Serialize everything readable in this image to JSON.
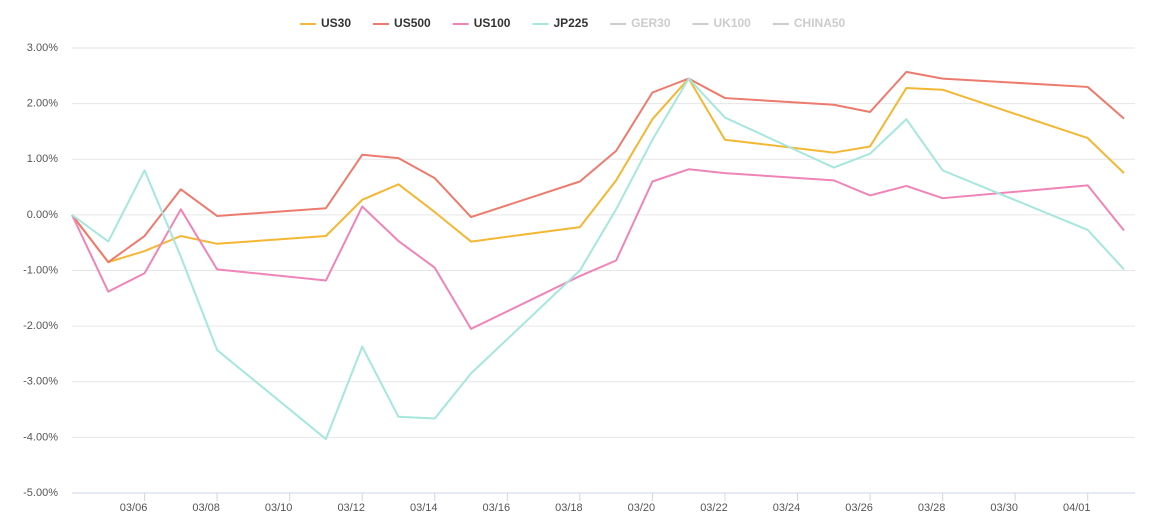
{
  "chart_data": {
    "type": "line",
    "x": [
      "03/04",
      "03/05",
      "03/06",
      "03/07",
      "03/08",
      "03/11",
      "03/12",
      "03/13",
      "03/14",
      "03/15",
      "03/18",
      "03/19",
      "03/20",
      "03/21",
      "03/22",
      "03/25",
      "03/26",
      "03/27",
      "03/28",
      "04/01",
      "04/02"
    ],
    "series": [
      {
        "name": "US30",
        "color": "#f4b733",
        "values": [
          0,
          -0.85,
          -0.65,
          -0.38,
          -0.52,
          -0.38,
          0.27,
          0.55,
          0.05,
          -0.48,
          -0.22,
          0.62,
          1.72,
          2.45,
          1.35,
          1.12,
          1.23,
          2.28,
          2.25,
          1.38,
          0.75
        ]
      },
      {
        "name": "US500",
        "color": "#ec7b6e",
        "values": [
          0,
          -0.85,
          -0.38,
          0.46,
          -0.02,
          0.12,
          1.08,
          1.02,
          0.66,
          -0.04,
          0.6,
          1.15,
          2.2,
          2.45,
          2.1,
          1.98,
          1.85,
          2.57,
          2.45,
          2.3,
          1.73
        ]
      },
      {
        "name": "US100",
        "color": "#ef84b8",
        "values": [
          0,
          -1.38,
          -1.05,
          0.1,
          -0.98,
          -1.18,
          0.15,
          -0.47,
          -0.95,
          -2.05,
          -1.1,
          -0.82,
          0.6,
          0.82,
          0.75,
          0.62,
          0.35,
          0.52,
          0.3,
          0.53,
          -0.28
        ]
      },
      {
        "name": "JP225",
        "color": "#a6e7dd",
        "values": [
          0,
          -0.48,
          0.8,
          -0.75,
          -2.43,
          -4.03,
          -2.37,
          -3.63,
          -3.66,
          -2.85,
          -1.0,
          0.1,
          1.35,
          2.45,
          1.75,
          0.85,
          1.1,
          1.72,
          0.8,
          -0.27,
          -0.98
        ]
      }
    ],
    "hidden_legend": [
      "GER30",
      "UK100",
      "CHINA50"
    ],
    "xlim": [
      "03/04",
      "04/02"
    ],
    "xticks": [
      "03/06",
      "03/08",
      "03/10",
      "03/12",
      "03/14",
      "03/16",
      "03/18",
      "03/20",
      "03/22",
      "03/24",
      "03/26",
      "03/28",
      "03/30",
      "04/01"
    ],
    "ylim": [
      -5,
      3
    ],
    "yticks": [
      {
        "value": 3,
        "label": "3.00%"
      },
      {
        "value": 2,
        "label": "2.00%"
      },
      {
        "value": 1,
        "label": "1.00%"
      },
      {
        "value": 0,
        "label": "0.00%"
      },
      {
        "value": -1,
        "label": "-1.00%"
      },
      {
        "value": -2,
        "label": "-2.00%"
      },
      {
        "value": -3,
        "label": "-3.00%"
      },
      {
        "value": -4,
        "label": "-4.00%"
      },
      {
        "value": -5,
        "label": "-5.00%"
      }
    ],
    "grid": true
  }
}
